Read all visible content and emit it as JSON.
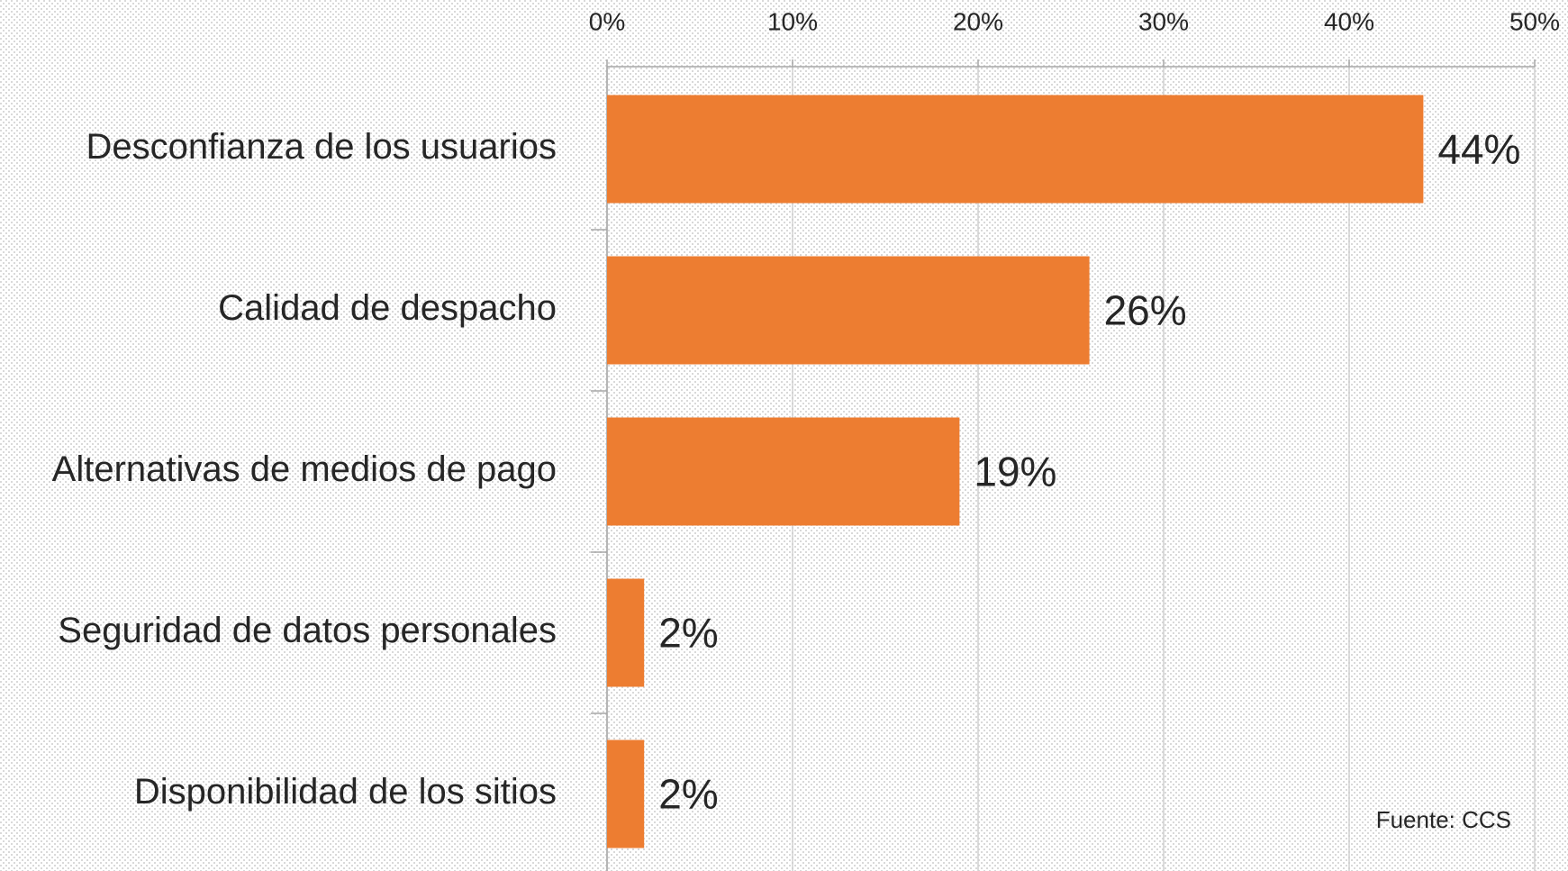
{
  "chart_data": {
    "type": "bar",
    "orientation": "horizontal",
    "categories": [
      "Desconfianza de los usuarios",
      "Calidad de despacho",
      "Alternativas de medios de pago",
      "Seguridad de datos personales",
      "Disponibilidad de los sitios"
    ],
    "values": [
      44,
      26,
      19,
      2,
      2
    ],
    "value_labels": [
      "44%",
      "26%",
      "19%",
      "2%",
      "2%"
    ],
    "color": "#ed7d31",
    "xlim": [
      0,
      50
    ],
    "xticks": [
      {
        "value": 0,
        "label": "0%"
      },
      {
        "value": 10,
        "label": "10%"
      },
      {
        "value": 20,
        "label": "20%"
      },
      {
        "value": 30,
        "label": "30%"
      },
      {
        "value": 40,
        "label": "40%"
      },
      {
        "value": 50,
        "label": "50%"
      }
    ],
    "grid": true,
    "source": "Fuente: CCS"
  }
}
